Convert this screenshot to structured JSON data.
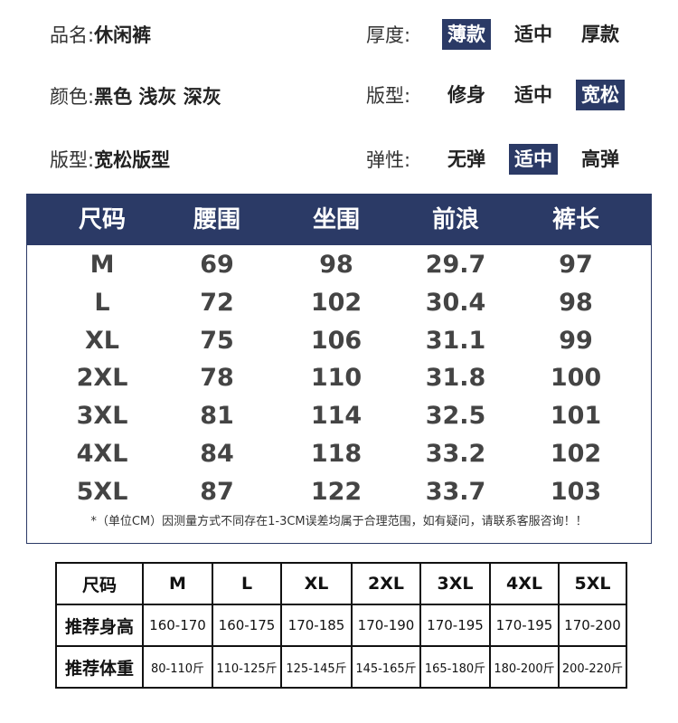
{
  "attributes": {
    "name_label": "品名:",
    "name_value": "休闲裤",
    "color_label": "颜色:",
    "color_value": "黑色 浅灰 深灰",
    "fit_label": "版型:",
    "fit_value": "宽松版型",
    "thickness": {
      "label": "厚度:",
      "options": [
        "薄款",
        "适中",
        "厚款"
      ],
      "selected": "薄款"
    },
    "style": {
      "label": "版型:",
      "options": [
        "修身",
        "适中",
        "宽松"
      ],
      "selected": "宽松"
    },
    "elasticity": {
      "label": "弹性:",
      "options": [
        "无弹",
        "适中",
        "高弹"
      ],
      "selected": "适中"
    }
  },
  "size_chart": {
    "headers": [
      "尺码",
      "腰围",
      "坐围",
      "前浪",
      "裤长"
    ],
    "rows": [
      [
        "M",
        "69",
        "98",
        "29.7",
        "97"
      ],
      [
        "L",
        "72",
        "102",
        "30.4",
        "98"
      ],
      [
        "XL",
        "75",
        "106",
        "31.1",
        "99"
      ],
      [
        "2XL",
        "78",
        "110",
        "31.8",
        "100"
      ],
      [
        "3XL",
        "81",
        "114",
        "32.5",
        "101"
      ],
      [
        "4XL",
        "84",
        "118",
        "33.2",
        "102"
      ],
      [
        "5XL",
        "87",
        "122",
        "33.7",
        "103"
      ]
    ],
    "note": "*（单位CM）因测量方式不同存在1-3CM误差均属于合理范围，如有疑问，请联系客服咨询！！"
  },
  "recommend": {
    "headers": [
      "尺码",
      "M",
      "L",
      "XL",
      "2XL",
      "3XL",
      "4XL",
      "5XL"
    ],
    "height_label": "推荐身高",
    "heights": [
      "160-170",
      "160-175",
      "170-185",
      "170-190",
      "170-195",
      "170-195",
      "170-200"
    ],
    "weight_label": "推荐体重",
    "weights": [
      "80-110斤",
      "110-125斤",
      "125-145斤",
      "145-165斤",
      "165-180斤",
      "180-200斤",
      "200-220斤"
    ]
  },
  "colors": {
    "accent": "#2b3a66"
  }
}
